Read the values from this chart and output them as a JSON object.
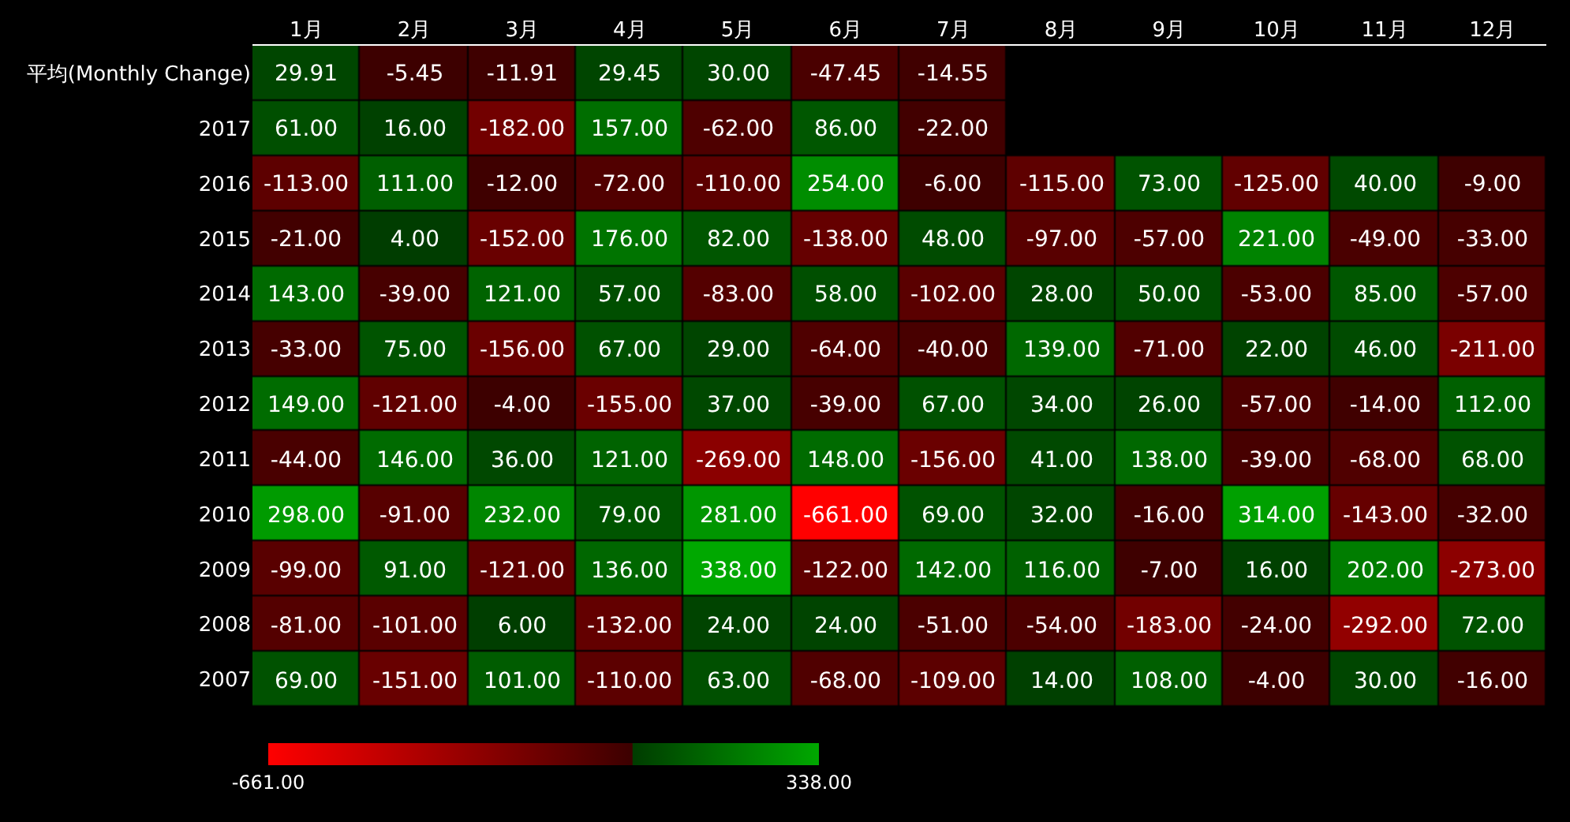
{
  "chart_data": {
    "type": "heatmap",
    "categories": [
      "1月",
      "2月",
      "3月",
      "4月",
      "5月",
      "6月",
      "7月",
      "8月",
      "9月",
      "10月",
      "11月",
      "12月"
    ],
    "y_categories": [
      "平均(Monthly Change)",
      "2017",
      "2016",
      "2015",
      "2014",
      "2013",
      "2012",
      "2011",
      "2010",
      "2009",
      "2008",
      "2007"
    ],
    "cells": [
      [
        29.91,
        -5.45,
        -11.91,
        29.45,
        30,
        -47.45,
        -14.55,
        null,
        null,
        null,
        null,
        null
      ],
      [
        61,
        16,
        -182,
        157,
        -62,
        86,
        -22,
        null,
        null,
        null,
        null,
        null
      ],
      [
        -113,
        111,
        -12,
        -72,
        -110,
        254,
        -6,
        -115,
        73,
        -125,
        40,
        -9
      ],
      [
        -21,
        4,
        -152,
        176,
        82,
        -138,
        48,
        -97,
        -57,
        221,
        -49,
        -33
      ],
      [
        143,
        -39,
        121,
        57,
        -83,
        58,
        -102,
        28,
        50,
        -53,
        85,
        -57
      ],
      [
        -33,
        75,
        -156,
        67,
        29,
        -64,
        -40,
        139,
        -71,
        22,
        46,
        -211
      ],
      [
        149,
        -121,
        -4,
        -155,
        37,
        -39,
        67,
        34,
        26,
        -57,
        -14,
        112
      ],
      [
        -44,
        146,
        36,
        121,
        -269,
        148,
        -156,
        41,
        138,
        -39,
        -68,
        68
      ],
      [
        298,
        -91,
        232,
        79,
        281,
        -661,
        69,
        32,
        -16,
        314,
        -143,
        -32
      ],
      [
        -99,
        91,
        -121,
        136,
        338,
        -122,
        142,
        116,
        -7,
        16,
        202,
        -273
      ],
      [
        -81,
        -101,
        6,
        -132,
        24,
        24,
        -51,
        -54,
        -183,
        -24,
        -292,
        72
      ],
      [
        69,
        -151,
        101,
        -110,
        63,
        -68,
        -109,
        14,
        108,
        -4,
        30,
        -16
      ]
    ],
    "cell_labels": [
      [
        "29.91",
        "-5.45",
        "-11.91",
        "29.45",
        "30.00",
        "-47.45",
        "-14.55",
        null,
        null,
        null,
        null,
        null
      ],
      [
        "61.00",
        "16.00",
        "-182.00",
        "157.00",
        "-62.00",
        "86.00",
        "-22.00",
        null,
        null,
        null,
        null,
        null
      ],
      [
        "-113.00",
        "111.00",
        "-12.00",
        "-72.00",
        "-110.00",
        "254.00",
        "-6.00",
        "-115.00",
        "73.00",
        "-125.00",
        "40.00",
        "-9.00"
      ],
      [
        "-21.00",
        "4.00",
        "-152.00",
        "176.00",
        "82.00",
        "-138.00",
        "48.00",
        "-97.00",
        "-57.00",
        "221.00",
        "-49.00",
        "-33.00"
      ],
      [
        "143.00",
        "-39.00",
        "121.00",
        "57.00",
        "-83.00",
        "58.00",
        "-102.00",
        "28.00",
        "50.00",
        "-53.00",
        "85.00",
        "-57.00"
      ],
      [
        "-33.00",
        "75.00",
        "-156.00",
        "67.00",
        "29.00",
        "-64.00",
        "-40.00",
        "139.00",
        "-71.00",
        "22.00",
        "46.00",
        "-211.00"
      ],
      [
        "149.00",
        "-121.00",
        "-4.00",
        "-155.00",
        "37.00",
        "-39.00",
        "67.00",
        "34.00",
        "26.00",
        "-57.00",
        "-14.00",
        "112.00"
      ],
      [
        "-44.00",
        "146.00",
        "36.00",
        "121.00",
        "-269.00",
        "148.00",
        "-156.00",
        "41.00",
        "138.00",
        "-39.00",
        "-68.00",
        "68.00"
      ],
      [
        "298.00",
        "-91.00",
        "232.00",
        "79.00",
        "281.00",
        "-661.00",
        "69.00",
        "32.00",
        "-16.00",
        "314.00",
        "-143.00",
        "-32.00"
      ],
      [
        "-99.00",
        "91.00",
        "-121.00",
        "136.00",
        "338.00",
        "-122.00",
        "142.00",
        "116.00",
        "-7.00",
        "16.00",
        "202.00",
        "-273.00"
      ],
      [
        "-81.00",
        "-101.00",
        "6.00",
        "-132.00",
        "24.00",
        "24.00",
        "-51.00",
        "-54.00",
        "-183.00",
        "-24.00",
        "-292.00",
        "72.00"
      ],
      [
        "69.00",
        "-151.00",
        "101.00",
        "-110.00",
        "63.00",
        "-68.00",
        "-109.00",
        "14.00",
        "108.00",
        "-4.00",
        "30.00",
        "-16.00"
      ]
    ],
    "clim": [
      -661,
      338
    ],
    "cticks": [
      {
        "value": -661,
        "label": "-661.00"
      },
      {
        "value": 338,
        "label": "338.00"
      }
    ]
  }
}
